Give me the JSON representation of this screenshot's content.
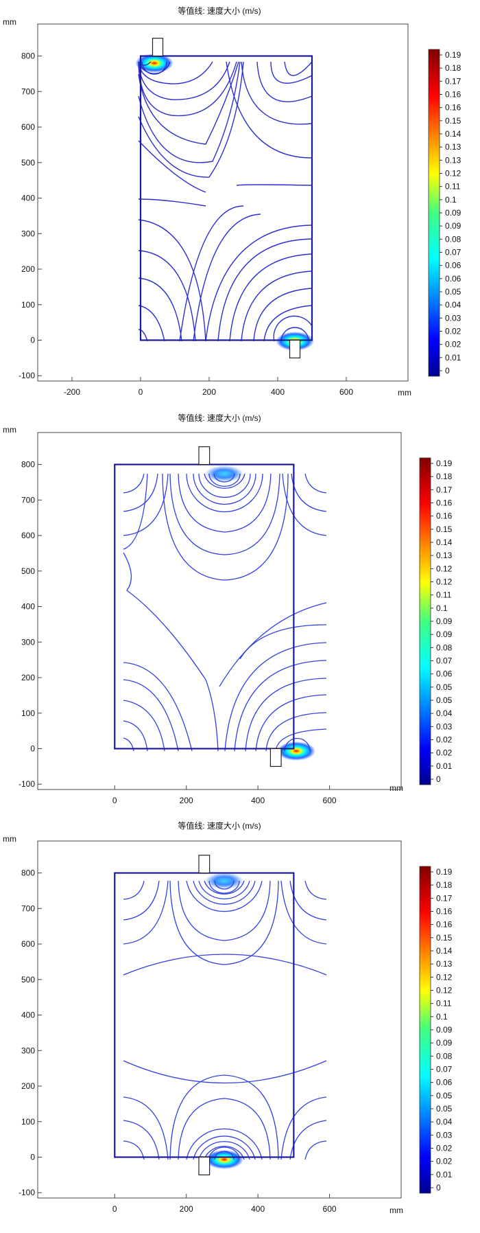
{
  "chart_data": [
    {
      "type": "contour",
      "title": "等值线: 速度大小 (m/s)",
      "x_unit_label": "mm",
      "y_unit_label": "mm",
      "xticks": [
        -200,
        0,
        200,
        400,
        600
      ],
      "yticks": [
        -100,
        0,
        100,
        200,
        300,
        400,
        500,
        600,
        700,
        800
      ],
      "xlim": [
        -300,
        780
      ],
      "ylim": [
        -115,
        890
      ],
      "domain": {
        "x": [
          0,
          500
        ],
        "y": [
          0,
          800
        ]
      },
      "inlet": {
        "x": 50,
        "y": 800,
        "width": 30,
        "length": 50
      },
      "outlet": {
        "x": 450,
        "y": 0,
        "width": 30,
        "length": 50
      },
      "colorbar": {
        "palette": "jet",
        "labels": [
          "0.19",
          "0.18",
          "0.17",
          "0.16",
          "0.16",
          "0.15",
          "0.14",
          "0.13",
          "0.13",
          "0.12",
          "0.11",
          "0.1",
          "0.09",
          "0.09",
          "0.08",
          "0.07",
          "0.06",
          "0.06",
          "0.05",
          "0.04",
          "0.03",
          "0.02",
          "0.02",
          "0.01",
          "0"
        ]
      }
    },
    {
      "type": "contour",
      "title": "等值线: 速度大小 (m/s)",
      "x_unit_label": "mm",
      "y_unit_label": "mm",
      "xticks": [
        0,
        200,
        400,
        600
      ],
      "yticks": [
        -100,
        0,
        100,
        200,
        300,
        400,
        500,
        600,
        700,
        800
      ],
      "xlim": [
        -215,
        800
      ],
      "ylim": [
        -115,
        890
      ],
      "domain": {
        "x": [
          0,
          500
        ],
        "y": [
          0,
          800
        ]
      },
      "inlet": {
        "x": 250,
        "y": 800,
        "width": 30,
        "length": 50
      },
      "outlet": {
        "x": 450,
        "y": 0,
        "width": 30,
        "length": 50
      },
      "colorbar": {
        "palette": "jet",
        "labels": [
          "0.19",
          "0.18",
          "0.17",
          "0.16",
          "0.16",
          "0.15",
          "0.14",
          "0.13",
          "0.12",
          "0.12",
          "0.11",
          "0.1",
          "0.09",
          "0.09",
          "0.08",
          "0.07",
          "0.06",
          "0.05",
          "0.05",
          "0.04",
          "0.03",
          "0.02",
          "0.02",
          "0.01",
          "0"
        ]
      }
    },
    {
      "type": "contour",
      "title": "等值线: 速度大小 (m/s)",
      "x_unit_label": "mm",
      "y_unit_label": "mm",
      "xticks": [
        0,
        200,
        400,
        600
      ],
      "yticks": [
        -100,
        0,
        100,
        200,
        300,
        400,
        500,
        600,
        700,
        800
      ],
      "xlim": [
        -215,
        800
      ],
      "ylim": [
        -115,
        890
      ],
      "domain": {
        "x": [
          0,
          500
        ],
        "y": [
          0,
          800
        ]
      },
      "inlet": {
        "x": 250,
        "y": 800,
        "width": 30,
        "length": 50
      },
      "outlet": {
        "x": 250,
        "y": 0,
        "width": 30,
        "length": 50
      },
      "colorbar": {
        "palette": "jet",
        "labels": [
          "0.19",
          "0.18",
          "0.17",
          "0.16",
          "0.16",
          "0.15",
          "0.14",
          "0.13",
          "0.12",
          "0.12",
          "0.11",
          "0.1",
          "0.09",
          "0.09",
          "0.08",
          "0.07",
          "0.06",
          "0.05",
          "0.05",
          "0.04",
          "0.03",
          "0.02",
          "0.02",
          "0.01",
          "0"
        ]
      }
    }
  ]
}
